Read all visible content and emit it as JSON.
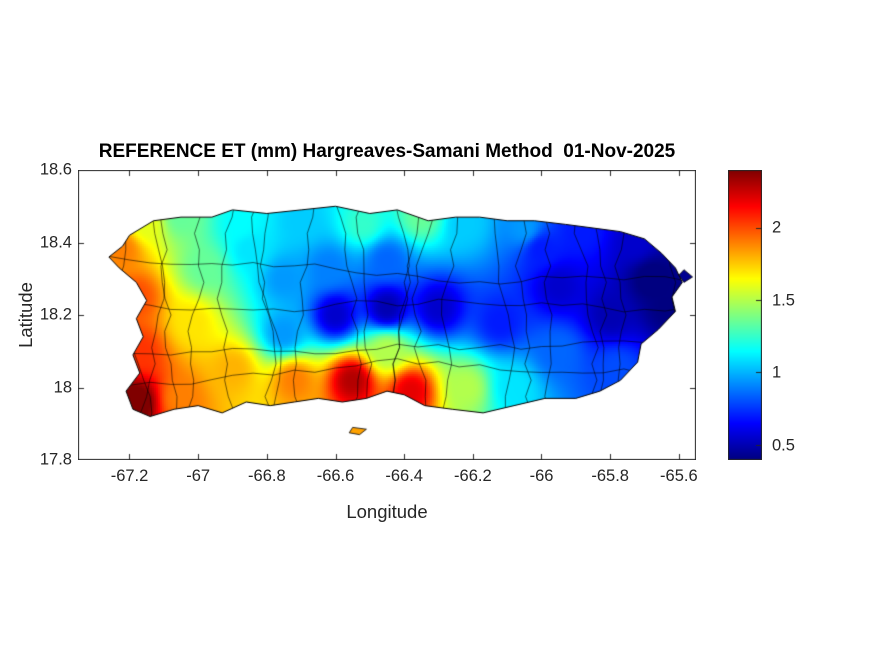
{
  "chart_data": {
    "type": "heatmap",
    "title": "REFERENCE ET (mm) Hargreaves-Samani Method  01-Nov-2025",
    "xlabel": "Longitude",
    "ylabel": "Latitude",
    "region": "Puerto Rico",
    "units": "mm",
    "method": "Hargreaves-Samani",
    "date": "01-Nov-2025",
    "colormap": "jet",
    "xlim": [
      -67.35,
      -65.55
    ],
    "ylim": [
      17.8,
      18.6
    ],
    "x_ticks": [
      {
        "v": -67.2,
        "label": "-67.2"
      },
      {
        "v": -67.0,
        "label": "-67"
      },
      {
        "v": -66.8,
        "label": "-66.8"
      },
      {
        "v": -66.6,
        "label": "-66.6"
      },
      {
        "v": -66.4,
        "label": "-66.4"
      },
      {
        "v": -66.2,
        "label": "-66.2"
      },
      {
        "v": -66.0,
        "label": "-66"
      },
      {
        "v": -65.8,
        "label": "-65.8"
      },
      {
        "v": -65.6,
        "label": "-65.6"
      }
    ],
    "y_ticks": [
      {
        "v": 17.8,
        "label": "17.8"
      },
      {
        "v": 18.0,
        "label": "18"
      },
      {
        "v": 18.2,
        "label": "18.2"
      },
      {
        "v": 18.4,
        "label": "18.4"
      },
      {
        "v": 18.6,
        "label": "18.6"
      }
    ],
    "colorbar": {
      "vmin": 0.4,
      "vmax": 2.4,
      "ticks": [
        {
          "v": 0.5,
          "label": "0.5"
        },
        {
          "v": 1.0,
          "label": "1"
        },
        {
          "v": 1.5,
          "label": "1.5"
        },
        {
          "v": 2.0,
          "label": "2"
        }
      ]
    },
    "island_outline": [
      [
        -67.2,
        18.42
      ],
      [
        -67.13,
        18.46
      ],
      [
        -67.05,
        18.47
      ],
      [
        -66.96,
        18.47
      ],
      [
        -66.9,
        18.49
      ],
      [
        -66.8,
        18.48
      ],
      [
        -66.7,
        18.49
      ],
      [
        -66.6,
        18.5
      ],
      [
        -66.5,
        18.48
      ],
      [
        -66.42,
        18.49
      ],
      [
        -66.33,
        18.46
      ],
      [
        -66.25,
        18.47
      ],
      [
        -66.18,
        18.47
      ],
      [
        -66.1,
        18.46
      ],
      [
        -66.02,
        18.46
      ],
      [
        -65.93,
        18.45
      ],
      [
        -65.85,
        18.44
      ],
      [
        -65.77,
        18.43
      ],
      [
        -65.7,
        18.41
      ],
      [
        -65.65,
        18.37
      ],
      [
        -65.61,
        18.33
      ],
      [
        -65.59,
        18.29
      ],
      [
        -65.62,
        18.25
      ],
      [
        -65.61,
        18.21
      ],
      [
        -65.66,
        18.16
      ],
      [
        -65.71,
        18.12
      ],
      [
        -65.72,
        18.07
      ],
      [
        -65.77,
        18.02
      ],
      [
        -65.83,
        17.99
      ],
      [
        -65.9,
        17.97
      ],
      [
        -65.99,
        17.97
      ],
      [
        -66.08,
        17.95
      ],
      [
        -66.17,
        17.93
      ],
      [
        -66.26,
        17.94
      ],
      [
        -66.34,
        17.95
      ],
      [
        -66.4,
        17.98
      ],
      [
        -66.45,
        17.99
      ],
      [
        -66.51,
        17.97
      ],
      [
        -66.58,
        17.96
      ],
      [
        -66.65,
        17.97
      ],
      [
        -66.72,
        17.96
      ],
      [
        -66.79,
        17.95
      ],
      [
        -66.86,
        17.96
      ],
      [
        -66.93,
        17.93
      ],
      [
        -67.0,
        17.95
      ],
      [
        -67.07,
        17.94
      ],
      [
        -67.14,
        17.92
      ],
      [
        -67.19,
        17.94
      ],
      [
        -67.21,
        17.99
      ],
      [
        -67.17,
        18.04
      ],
      [
        -67.19,
        18.09
      ],
      [
        -67.16,
        18.14
      ],
      [
        -67.18,
        18.19
      ],
      [
        -67.15,
        18.24
      ],
      [
        -67.18,
        18.29
      ],
      [
        -67.23,
        18.33
      ],
      [
        -67.26,
        18.36
      ],
      [
        -67.22,
        18.39
      ]
    ],
    "islets": [
      [
        [
          -66.55,
          17.89
        ],
        [
          -66.51,
          17.885
        ],
        [
          -66.53,
          17.87
        ],
        [
          -66.56,
          17.875
        ]
      ],
      [
        [
          -65.585,
          18.325
        ],
        [
          -65.56,
          18.305
        ],
        [
          -65.585,
          18.29
        ],
        [
          -65.6,
          18.31
        ]
      ]
    ],
    "field_points": [
      [
        -67.22,
        18.38,
        1.9
      ],
      [
        -67.15,
        18.45,
        1.6
      ],
      [
        -67.05,
        18.47,
        1.35
      ],
      [
        -67.18,
        18.25,
        2.0
      ],
      [
        -67.17,
        18.1,
        2.05
      ],
      [
        -67.18,
        17.96,
        2.45
      ],
      [
        -67.05,
        17.97,
        1.9
      ],
      [
        -67.02,
        18.18,
        1.7
      ],
      [
        -66.98,
        18.33,
        1.35
      ],
      [
        -66.88,
        18.45,
        1.15
      ],
      [
        -66.85,
        18.38,
        1.1
      ],
      [
        -66.7,
        18.46,
        1.05
      ],
      [
        -66.52,
        18.45,
        1.25
      ],
      [
        -66.35,
        18.47,
        1.35
      ],
      [
        -66.22,
        18.45,
        1.05
      ],
      [
        -66.05,
        18.44,
        0.95
      ],
      [
        -65.88,
        18.43,
        0.7
      ],
      [
        -65.73,
        18.4,
        0.55
      ],
      [
        -66.75,
        18.3,
        0.95
      ],
      [
        -66.62,
        18.33,
        0.9
      ],
      [
        -66.45,
        18.35,
        0.85
      ],
      [
        -66.6,
        18.2,
        0.55
      ],
      [
        -66.45,
        18.22,
        0.5
      ],
      [
        -66.3,
        18.22,
        0.55
      ],
      [
        -66.75,
        18.15,
        0.95
      ],
      [
        -66.9,
        18.05,
        1.8
      ],
      [
        -66.72,
        18.02,
        1.9
      ],
      [
        -66.55,
        18.02,
        2.3
      ],
      [
        -66.38,
        17.99,
        2.2
      ],
      [
        -66.45,
        18.1,
        1.5
      ],
      [
        -66.22,
        18.0,
        1.5
      ],
      [
        -66.08,
        18.0,
        1.1
      ],
      [
        -66.12,
        18.18,
        0.7
      ],
      [
        -65.95,
        18.1,
        0.85
      ],
      [
        -65.95,
        18.28,
        0.55
      ],
      [
        -65.8,
        18.2,
        0.5
      ],
      [
        -65.78,
        18.05,
        0.8
      ],
      [
        -65.68,
        18.3,
        0.38
      ],
      [
        -65.63,
        18.22,
        0.4
      ],
      [
        -66.0,
        18.38,
        0.7
      ]
    ]
  },
  "style": {
    "background": "#ffffff",
    "axis_color": "#262626",
    "boundary_color": "#000000"
  }
}
